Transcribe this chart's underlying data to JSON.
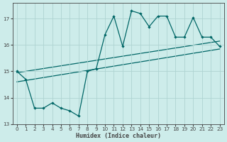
{
  "xlabel": "Humidex (Indice chaleur)",
  "ylabel": "",
  "bg_color": "#cdecea",
  "line_color": "#006666",
  "grid_color": "#aed4d2",
  "axis_color": "#444444",
  "xlim": [
    -0.5,
    23.5
  ],
  "ylim": [
    13.0,
    17.6
  ],
  "yticks": [
    13,
    14,
    15,
    16,
    17
  ],
  "xticks": [
    0,
    1,
    2,
    3,
    4,
    5,
    6,
    7,
    8,
    9,
    10,
    11,
    12,
    13,
    14,
    15,
    16,
    17,
    18,
    19,
    20,
    21,
    22,
    23
  ],
  "series": [
    [
      0,
      15.0
    ],
    [
      1,
      14.7
    ],
    [
      2,
      13.6
    ],
    [
      3,
      13.6
    ],
    [
      4,
      13.8
    ],
    [
      5,
      13.6
    ],
    [
      6,
      13.5
    ],
    [
      7,
      13.3
    ],
    [
      8,
      15.0
    ],
    [
      9,
      15.1
    ],
    [
      10,
      16.4
    ],
    [
      11,
      17.1
    ],
    [
      12,
      15.95
    ],
    [
      13,
      17.3
    ],
    [
      14,
      17.2
    ],
    [
      15,
      16.7
    ],
    [
      16,
      17.1
    ],
    [
      17,
      17.1
    ],
    [
      18,
      16.3
    ],
    [
      19,
      16.3
    ],
    [
      20,
      17.05
    ],
    [
      21,
      16.3
    ],
    [
      22,
      16.3
    ],
    [
      23,
      15.95
    ]
  ],
  "trend_line1": [
    [
      0,
      14.95
    ],
    [
      23,
      16.15
    ]
  ],
  "trend_line2": [
    [
      0,
      14.6
    ],
    [
      23,
      15.85
    ]
  ]
}
